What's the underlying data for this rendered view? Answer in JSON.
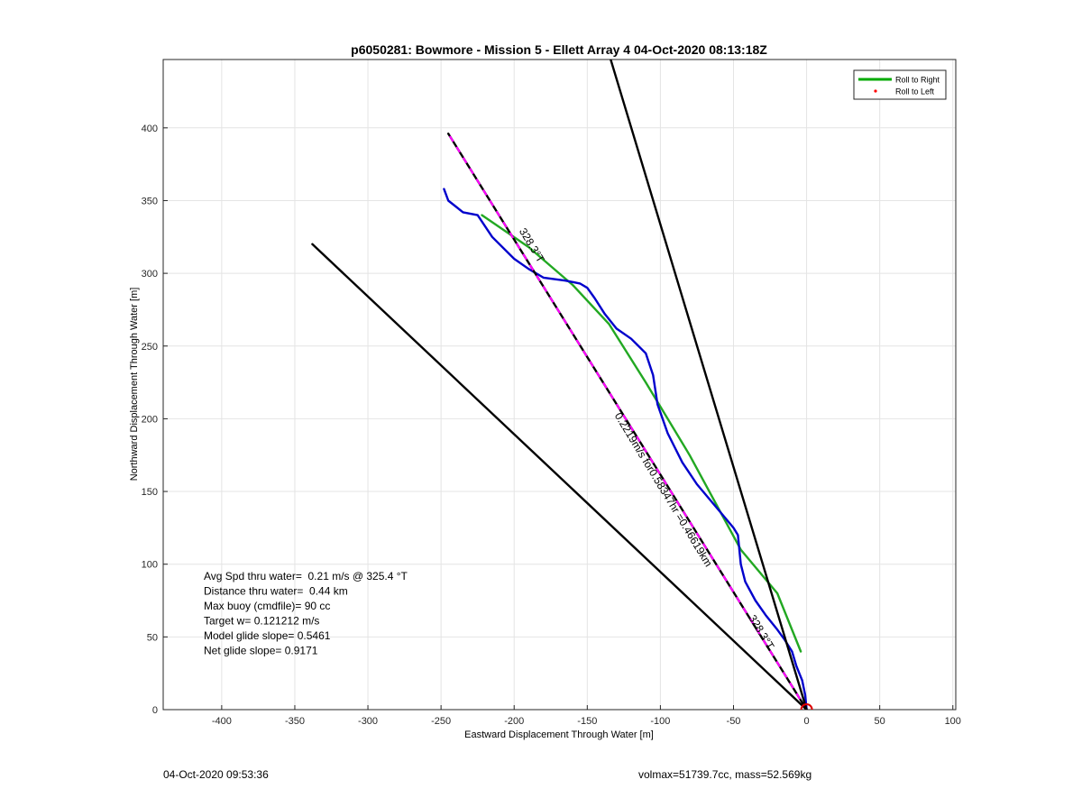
{
  "footer": {
    "timestamp": "04-Oct-2020 09:53:36",
    "vehicle_info": "volmax=51739.7cc, mass=52.569kg"
  },
  "chart_data": {
    "type": "line",
    "title": "p6050281: Bowmore - Mission 5 - Ellett Array 4 04-Oct-2020 08:13:18Z",
    "xlabel": "Eastward Displacement Through Water [m]",
    "ylabel": "Northward Displacement Through Water [m]",
    "xlim": [
      -440,
      102
    ],
    "ylim": [
      0,
      447
    ],
    "xticks": [
      -400,
      -350,
      -300,
      -250,
      -200,
      -150,
      -100,
      -50,
      0,
      50,
      100
    ],
    "yticks": [
      0,
      50,
      100,
      150,
      200,
      250,
      300,
      350,
      400
    ],
    "grid": true,
    "legend": {
      "placement": "top-right",
      "entries": [
        {
          "label": "Roll to Right",
          "color": "#00aa00",
          "marker": "line"
        },
        {
          "label": "Roll to Left",
          "color": "#ff0000",
          "marker": "dot"
        }
      ]
    },
    "series": [
      {
        "name": "Roll to Right",
        "color": "#22a822",
        "style": "solid",
        "x": [
          -4,
          -20,
          -45,
          -80,
          -110,
          -135,
          -160,
          -190,
          -222
        ],
        "y": [
          40,
          80,
          110,
          175,
          225,
          265,
          292,
          318,
          340
        ]
      },
      {
        "color": "#0000cc",
        "style": "solid",
        "x": [
          0,
          -1,
          -3,
          -7,
          -10,
          -15,
          -20,
          -28,
          -35,
          -42,
          -45,
          -46,
          -47,
          -50,
          -60,
          -75,
          -85,
          -95,
          -102,
          -105,
          -110,
          -120,
          -130,
          -138,
          -145,
          -150,
          -155,
          -165,
          -180,
          -190,
          -200,
          -215,
          -225,
          -235,
          -245,
          -248
        ],
        "y": [
          0,
          10,
          20,
          30,
          40,
          48,
          55,
          65,
          75,
          88,
          100,
          110,
          120,
          125,
          137,
          155,
          170,
          190,
          210,
          230,
          245,
          255,
          262,
          272,
          283,
          290,
          293,
          295,
          297,
          303,
          310,
          325,
          340,
          342,
          350,
          358
        ]
      },
      {
        "color": "#000000",
        "style": "solid",
        "x": [
          0,
          -245
        ],
        "y": [
          0,
          396
        ]
      },
      {
        "color": "#ff00ff",
        "style": "dashed",
        "x": [
          0,
          -245
        ],
        "y": [
          0,
          396
        ]
      },
      {
        "color": "#000000",
        "style": "solid",
        "x": [
          0,
          -338
        ],
        "y": [
          0,
          320
        ]
      },
      {
        "color": "#000000",
        "style": "solid",
        "x": [
          0,
          -134
        ],
        "y": [
          0,
          447
        ]
      }
    ],
    "start_marker": {
      "x": 0,
      "y": 0,
      "color": "#dd0000"
    },
    "annotations": [
      {
        "text": "328.3°T",
        "x": -190,
        "y": 318,
        "angle_deg": 58.8,
        "upside_down": true
      },
      {
        "text": "328.3°T",
        "x": -33,
        "y": 52,
        "angle_deg": 58.8,
        "upside_down": true
      },
      {
        "text": "0.2219m/s for0.58347hr =0.46619km",
        "x": -100,
        "y": 150,
        "angle_deg": 58.8,
        "upside_down": true
      }
    ],
    "stats": [
      "Avg Spd thru water=  0.21 m/s @ 325.4 °T",
      "Distance thru water=  0.44 km",
      "Max buoy (cmdfile)= 90 cc",
      "Target w= 0.121212 m/s",
      "Model glide slope= 0.5461",
      "Net glide slope= 0.9171"
    ]
  }
}
